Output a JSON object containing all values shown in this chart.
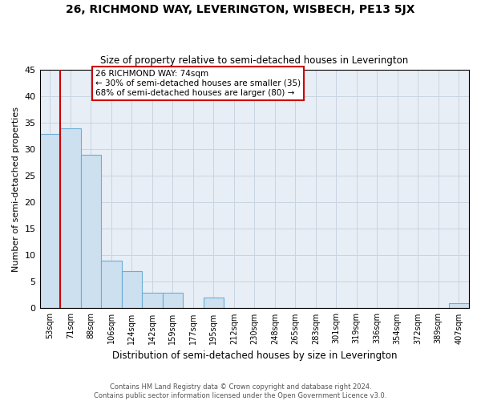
{
  "title": "26, RICHMOND WAY, LEVERINGTON, WISBECH, PE13 5JX",
  "subtitle": "Size of property relative to semi-detached houses in Leverington",
  "xlabel": "Distribution of semi-detached houses by size in Leverington",
  "ylabel": "Number of semi-detached properties",
  "categories": [
    "53sqm",
    "71sqm",
    "88sqm",
    "106sqm",
    "124sqm",
    "142sqm",
    "159sqm",
    "177sqm",
    "195sqm",
    "212sqm",
    "230sqm",
    "248sqm",
    "265sqm",
    "283sqm",
    "301sqm",
    "319sqm",
    "336sqm",
    "354sqm",
    "372sqm",
    "389sqm",
    "407sqm"
  ],
  "values": [
    33,
    34,
    29,
    9,
    7,
    3,
    3,
    0,
    2,
    0,
    0,
    0,
    0,
    0,
    0,
    0,
    0,
    0,
    0,
    0,
    1
  ],
  "bar_color": "#cce0f0",
  "bar_edge_color": "#6aaed6",
  "property_line_x": 0.5,
  "annotation_title": "26 RICHMOND WAY: 74sqm",
  "annotation_line1": "← 30% of semi-detached houses are smaller (35)",
  "annotation_line2": "68% of semi-detached houses are larger (80) →",
  "annotation_box_color": "#ffffff",
  "annotation_box_edge": "#cc0000",
  "vline_color": "#cc0000",
  "ylim": [
    0,
    45
  ],
  "yticks": [
    0,
    5,
    10,
    15,
    20,
    25,
    30,
    35,
    40,
    45
  ],
  "grid_color": "#c8d4e0",
  "bg_color": "#e8eef5",
  "footnote1": "Contains HM Land Registry data © Crown copyright and database right 2024.",
  "footnote2": "Contains public sector information licensed under the Open Government Licence v3.0."
}
